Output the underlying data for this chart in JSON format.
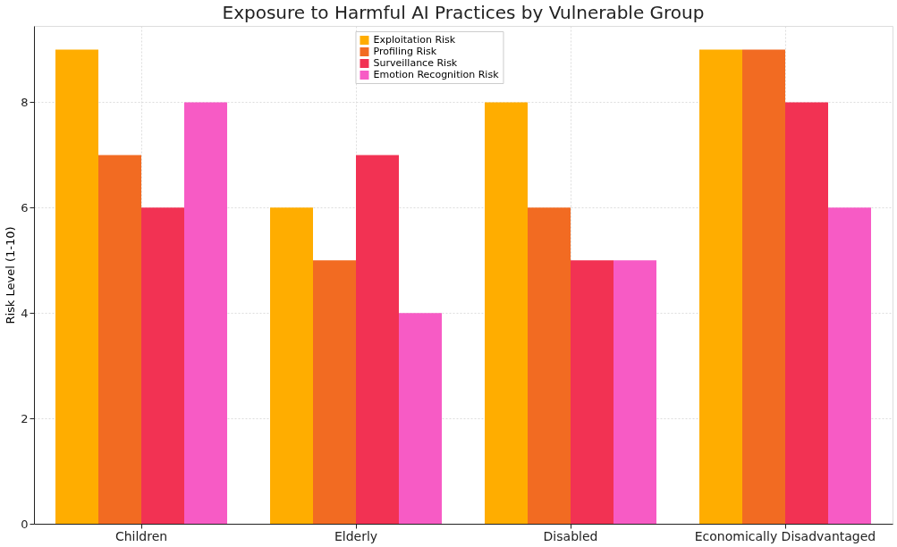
{
  "chart_data": {
    "type": "bar",
    "title": "Exposure to Harmful AI Practices by Vulnerable Group",
    "ylabel": "Risk Level (1-10)",
    "categories": [
      "Children",
      "Elderly",
      "Disabled",
      "Economically Disadvantaged"
    ],
    "series": [
      {
        "name": "Exploitation Risk",
        "color": "#ffad00",
        "values": [
          9,
          6,
          8,
          9
        ]
      },
      {
        "name": "Profiling Risk",
        "color": "#f26b22",
        "values": [
          7,
          5,
          6,
          9
        ]
      },
      {
        "name": "Surveillance Risk",
        "color": "#f23253",
        "values": [
          6,
          7,
          5,
          8
        ]
      },
      {
        "name": "Emotion Recognition Risk",
        "color": "#f75bc5",
        "values": [
          8,
          4,
          5,
          6
        ]
      }
    ],
    "ylim": [
      0,
      9.45
    ],
    "yticks": [
      0,
      2,
      4,
      6,
      8
    ],
    "grid": true,
    "legend": "top"
  }
}
